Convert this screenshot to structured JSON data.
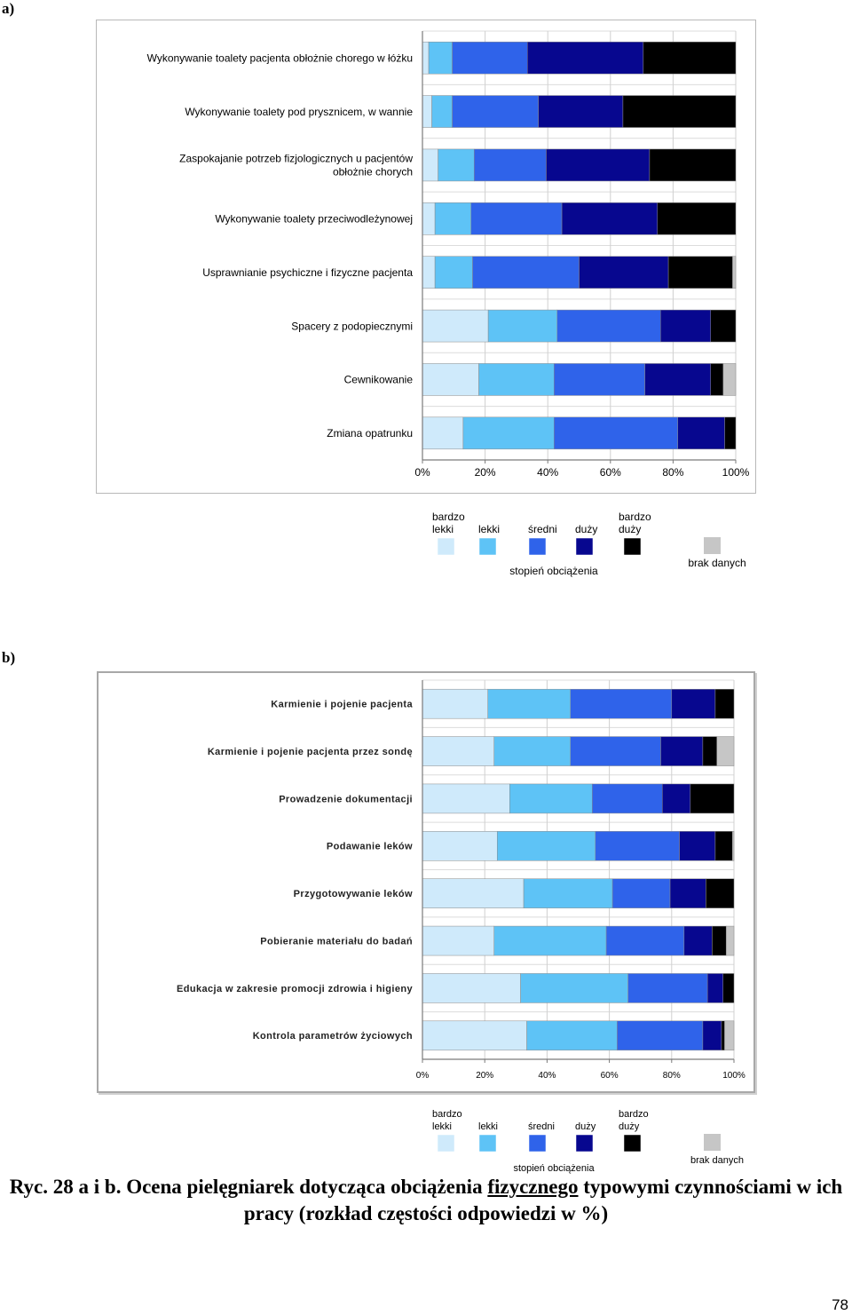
{
  "panel_a_label": "a)",
  "panel_b_label": "b)",
  "colors": {
    "bardzo_lekki": "#cfeafb",
    "lekki": "#5ec3f6",
    "sredni": "#2f63ea",
    "duzy": "#07078f",
    "bardzo_duzy": "#000000",
    "brak": "#c6c6c6"
  },
  "legend": {
    "title": "stopień obciążenia",
    "bardzo_lekki": "bardzo lekki",
    "lekki": "lekki",
    "sredni": "średni",
    "duzy": "duży",
    "bardzo_duzy": "bardzo duży",
    "brak": "brak danych"
  },
  "chart_data": [
    {
      "type": "bar",
      "orientation": "horizontal-stacked-100",
      "panel": "a",
      "categories": [
        "Wykonywanie toalety pacjenta obłożnie chorego w łóżku",
        "Wykonywanie toalety pod prysznicem, w wannie",
        "Zaspokajanie potrzeb fizjologicznych u pacjentów obłożnie chorych",
        "Wykonywanie toalety przeciwodleżynowej",
        "Usprawnianie psychiczne i fizyczne pacjenta",
        "Spacery z podopiecznymi",
        "Cewnikowanie",
        "Zmiana opatrunku"
      ],
      "series": [
        {
          "name": "bardzo lekki",
          "values": [
            2,
            3,
            5,
            4,
            4,
            21,
            18,
            13
          ]
        },
        {
          "name": "lekki",
          "values": [
            7.5,
            6.5,
            11.5,
            11.5,
            12,
            22,
            24,
            29
          ]
        },
        {
          "name": "średni",
          "values": [
            24,
            27.5,
            23,
            29,
            34,
            33,
            29,
            39.5
          ]
        },
        {
          "name": "duży",
          "values": [
            37,
            27,
            33,
            30.5,
            28.5,
            16,
            21,
            15
          ]
        },
        {
          "name": "bardzo duży",
          "values": [
            29.5,
            36,
            27.5,
            25,
            20.5,
            8,
            4,
            3.5
          ]
        },
        {
          "name": "brak danych",
          "values": [
            0,
            0,
            0,
            0,
            1,
            0,
            4,
            0
          ]
        }
      ],
      "xlim": [
        0,
        100
      ],
      "xticks": [
        "0%",
        "20%",
        "40%",
        "60%",
        "80%",
        "100%"
      ]
    },
    {
      "type": "bar",
      "orientation": "horizontal-stacked-100",
      "panel": "b",
      "categories": [
        "Karmienie i pojenie pacjenta",
        "Karmienie i pojenie pacjenta przez sondę",
        "Prowadzenie dokumentacji",
        "Podawanie leków",
        "Przygotowywanie leków",
        "Pobieranie materiału do badań",
        "Edukacja w zakresie promocji zdrowia i higieny",
        "Kontrola parametrów życiowych"
      ],
      "series": [
        {
          "name": "bardzo lekki",
          "values": [
            21,
            23,
            28,
            24,
            32.5,
            23,
            31.5,
            33.5
          ]
        },
        {
          "name": "lekki",
          "values": [
            26.5,
            24.5,
            26.5,
            31.5,
            28.5,
            36,
            34.5,
            29
          ]
        },
        {
          "name": "średni",
          "values": [
            32.5,
            29,
            22.5,
            27,
            18.5,
            25,
            25.5,
            27.5
          ]
        },
        {
          "name": "duży",
          "values": [
            14,
            13.5,
            9,
            11.5,
            11.5,
            9,
            5,
            6
          ]
        },
        {
          "name": "bardzo duży",
          "values": [
            6,
            4.5,
            14,
            5.5,
            9,
            4.5,
            3.5,
            1
          ]
        },
        {
          "name": "brak danych",
          "values": [
            0,
            5.5,
            0,
            0.5,
            0,
            2.5,
            0,
            3
          ]
        }
      ],
      "xlim": [
        0,
        100
      ],
      "xticks": [
        "0%",
        "20%",
        "40%",
        "60%",
        "80%",
        "100%"
      ]
    }
  ],
  "caption": {
    "prefix": "Ryc. 28 a i b. Ocena pielęgniarek dotycząca obciążenia ",
    "underlined": "fizycznego",
    "suffix": " typowymi czynnościami w ich pracy (rozkład częstości odpowiedzi w %)"
  },
  "page_number": "78"
}
